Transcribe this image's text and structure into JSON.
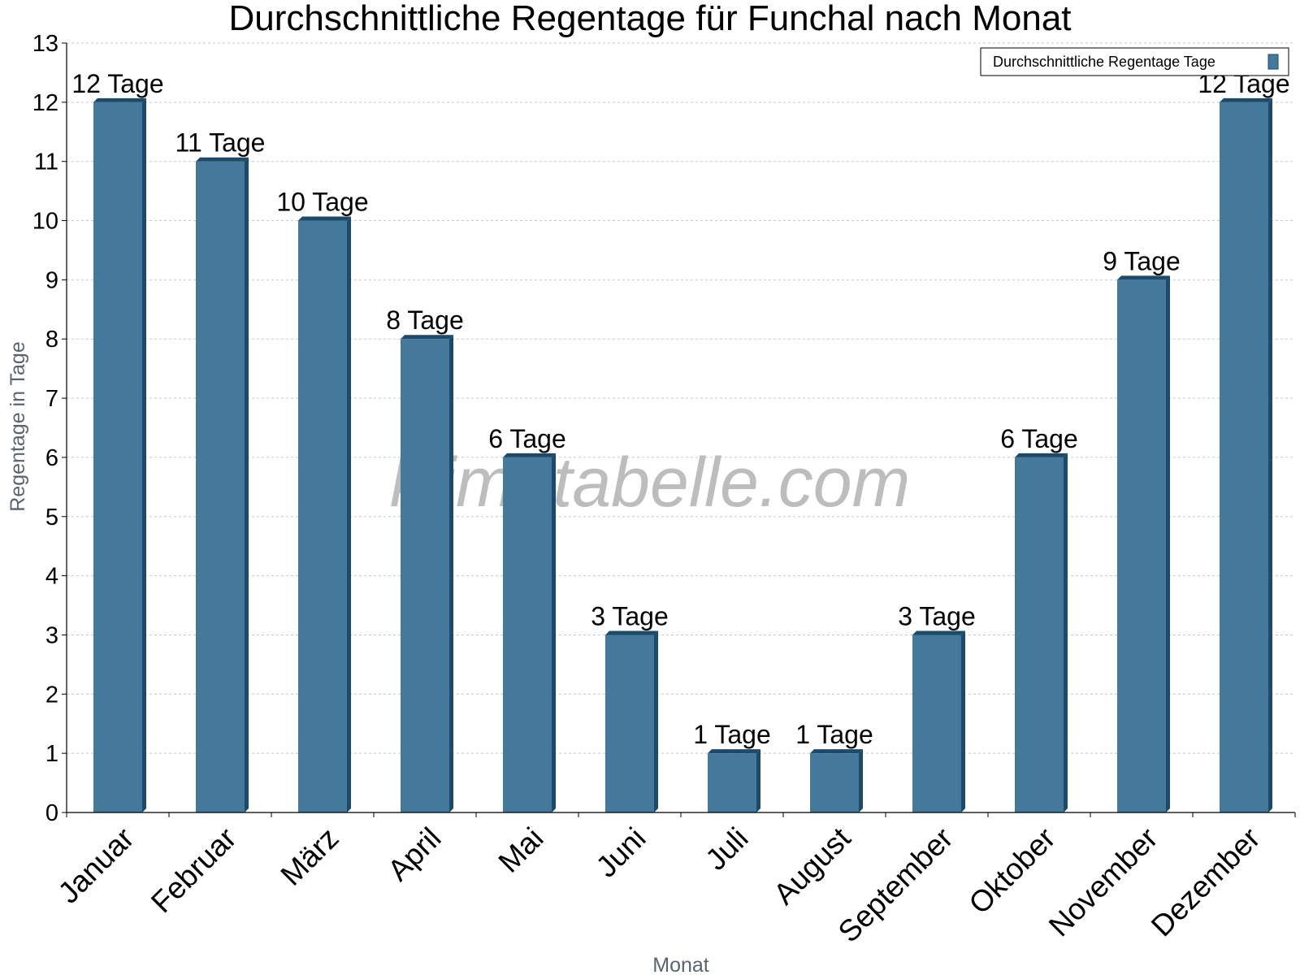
{
  "chart_data": {
    "type": "bar",
    "title": "Durchschnittliche Regentage für Funchal nach Monat",
    "xlabel": "Monat",
    "ylabel": "Regentage in Tage",
    "ylim": [
      0,
      13
    ],
    "yticks": [
      "0",
      "1",
      "2",
      "3",
      "4",
      "5",
      "6",
      "7",
      "8",
      "9",
      "10",
      "11",
      "12",
      "13"
    ],
    "grid": true,
    "legend_position": "top-right",
    "categories": [
      "Januar",
      "Februar",
      "März",
      "April",
      "Mai",
      "Juni",
      "Juli",
      "August",
      "September",
      "Oktober",
      "November",
      "Dezember"
    ],
    "series": [
      {
        "name": "Durchschnittliche Regentage Tage",
        "values": [
          12,
          11,
          10,
          8,
          6,
          3,
          1,
          1,
          3,
          6,
          9,
          12
        ],
        "data_labels": [
          "12 Tage",
          "11 Tage",
          "10 Tage",
          "8 Tage",
          "6 Tage",
          "3 Tage",
          "1 Tage",
          "1 Tage",
          "3 Tage",
          "6 Tage",
          "9 Tage",
          "12 Tage"
        ],
        "color": "#45799b",
        "side_color": "#1c4a6b"
      }
    ]
  },
  "watermark": "klimatabelle.com"
}
